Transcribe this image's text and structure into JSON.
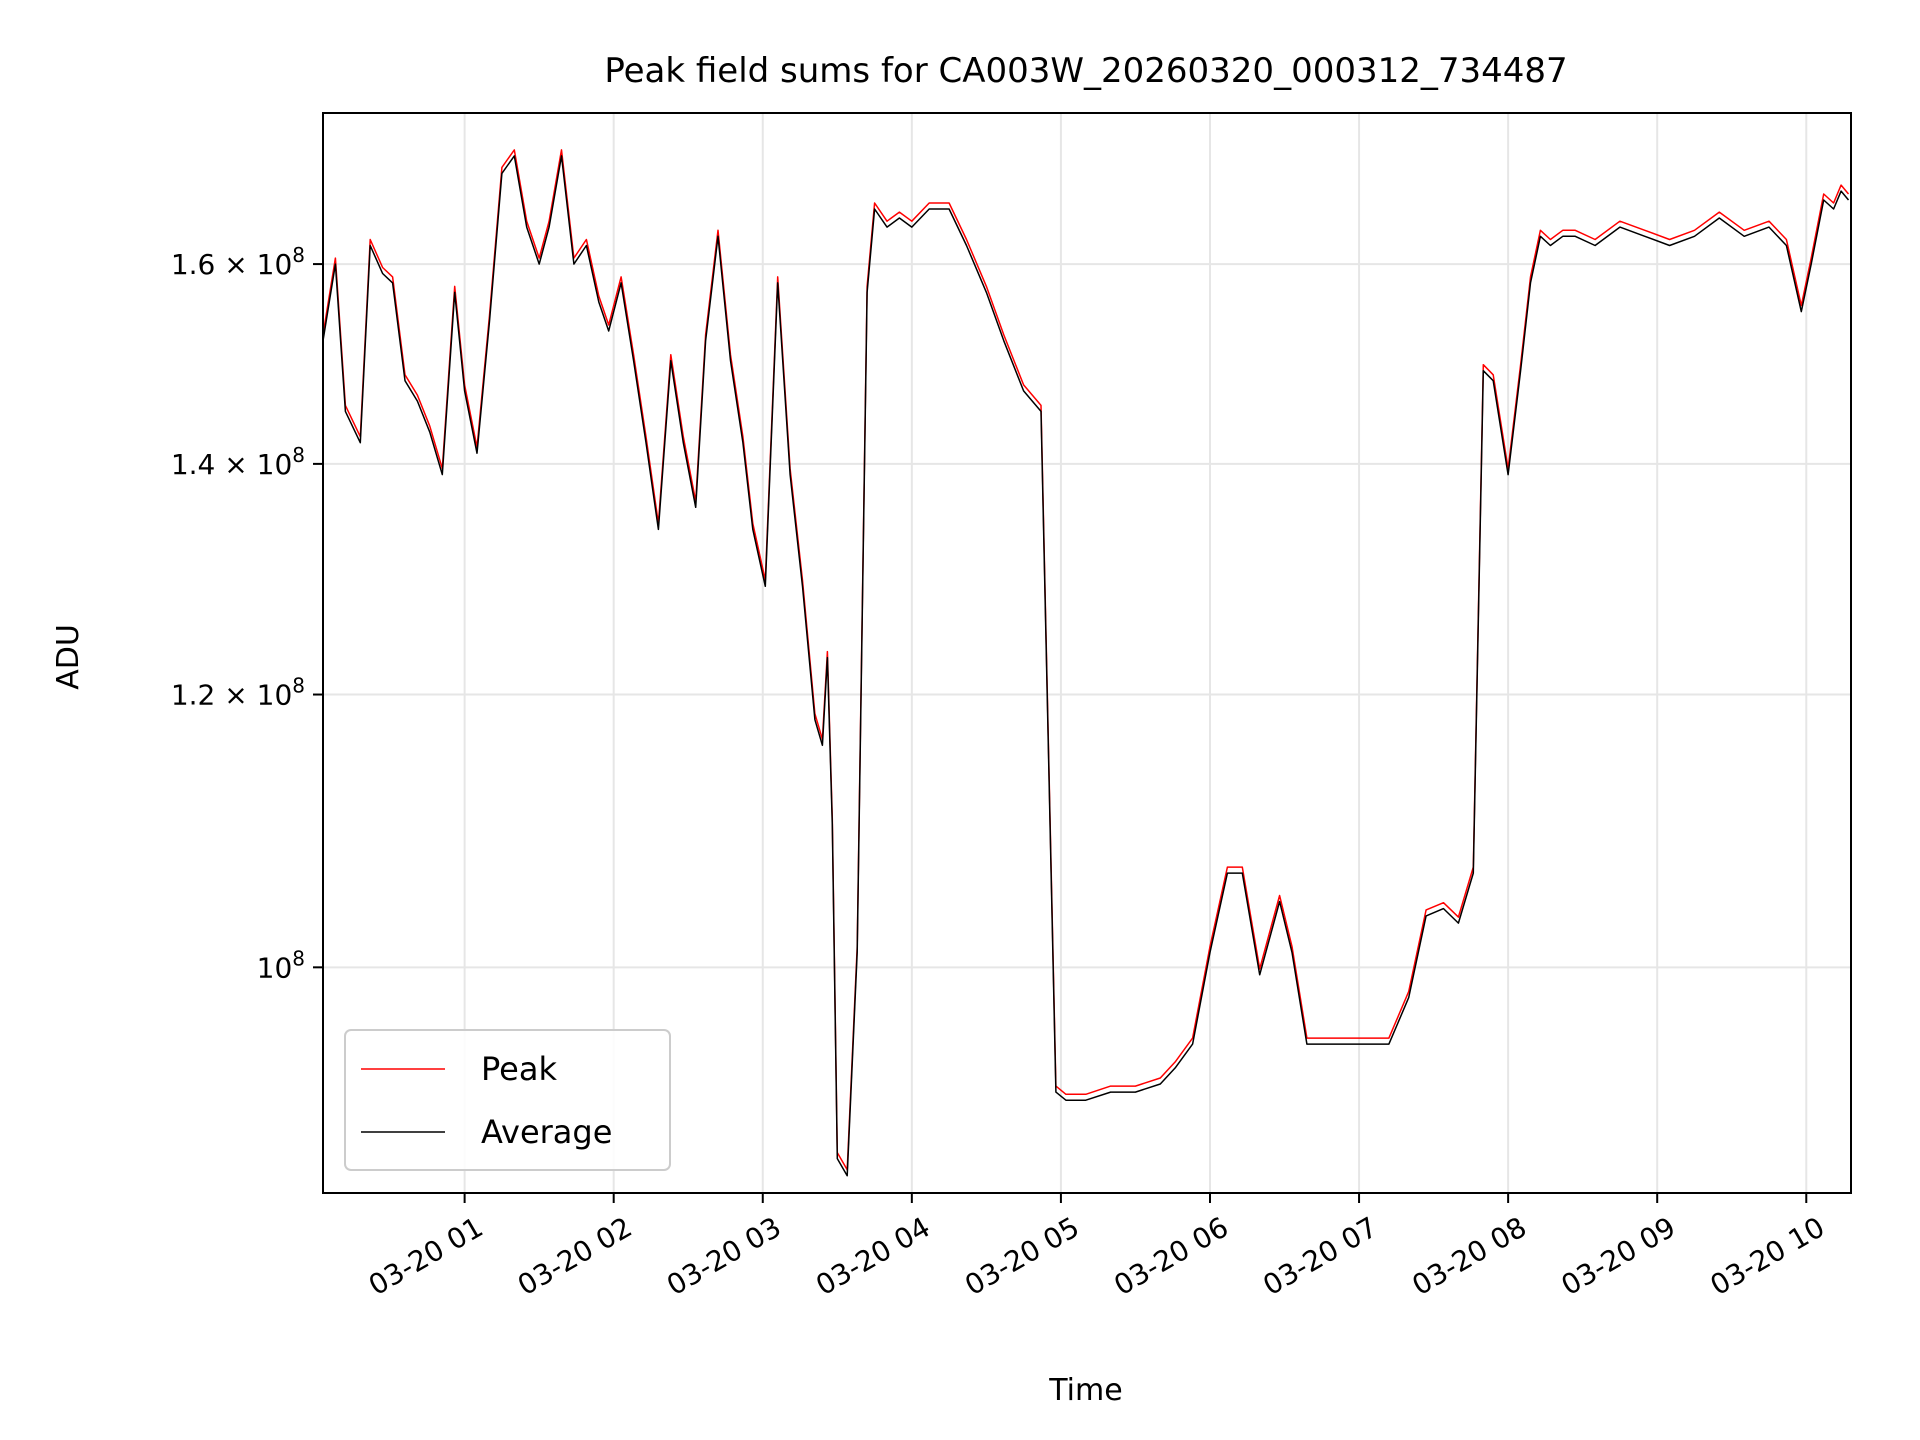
{
  "chart_data": {
    "type": "line",
    "title": "Peak field sums for CA003W_20260320_000312_734487",
    "xlabel": "Time",
    "ylabel": "ADU",
    "y_scale": "log",
    "grid": true,
    "legend_placement": "lower-left",
    "xlim": [
      "03-20 00:03",
      "03-20 10:18"
    ],
    "ylim": [
      86000000,
      177000000
    ],
    "x_ticks": [
      "03-20 01",
      "03-20 02",
      "03-20 03",
      "03-20 04",
      "03-20 05",
      "03-20 06",
      "03-20 07",
      "03-20 08",
      "03-20 09",
      "03-20 10"
    ],
    "y_ticks": [
      {
        "value": 100000000,
        "base": "10",
        "exp": "8",
        "mantissa": ""
      },
      {
        "value": 120000000,
        "base": "10",
        "exp": "8",
        "mantissa": "1.2"
      },
      {
        "value": 140000000,
        "base": "10",
        "exp": "8",
        "mantissa": "1.4"
      },
      {
        "value": 160000000,
        "base": "10",
        "exp": "8",
        "mantissa": "1.6"
      }
    ],
    "series": [
      {
        "name": "Peak",
        "color": "#ff0000",
        "offset_factor": 1.004
      },
      {
        "name": "Average",
        "color": "#000000",
        "offset_factor": 1.0,
        "x": [
          "03-20 00:03",
          "03-20 00:08",
          "03-20 00:12",
          "03-20 00:18",
          "03-20 00:22",
          "03-20 00:27",
          "03-20 00:31",
          "03-20 00:36",
          "03-20 00:41",
          "03-20 00:46",
          "03-20 00:51",
          "03-20 00:56",
          "03-20 01:00",
          "03-20 01:05",
          "03-20 01:10",
          "03-20 01:15",
          "03-20 01:20",
          "03-20 01:25",
          "03-20 01:30",
          "03-20 01:34",
          "03-20 01:39",
          "03-20 01:44",
          "03-20 01:49",
          "03-20 01:54",
          "03-20 01:58",
          "03-20 02:03",
          "03-20 02:08",
          "03-20 02:13",
          "03-20 02:18",
          "03-20 02:23",
          "03-20 02:28",
          "03-20 02:33",
          "03-20 02:37",
          "03-20 02:42",
          "03-20 02:47",
          "03-20 02:52",
          "03-20 02:56",
          "03-20 03:01",
          "03-20 03:06",
          "03-20 03:11",
          "03-20 03:16",
          "03-20 03:21",
          "03-20 03:24",
          "03-20 03:26",
          "03-20 03:28",
          "03-20 03:30",
          "03-20 03:34",
          "03-20 03:38",
          "03-20 03:42",
          "03-20 03:45",
          "03-20 03:50",
          "03-20 03:55",
          "03-20 04:00",
          "03-20 04:07",
          "03-20 04:15",
          "03-20 04:22",
          "03-20 04:30",
          "03-20 04:37",
          "03-20 04:45",
          "03-20 04:52",
          "03-20 04:58",
          "03-20 05:02",
          "03-20 05:05",
          "03-20 05:10",
          "03-20 05:20",
          "03-20 05:30",
          "03-20 05:40",
          "03-20 05:46",
          "03-20 05:53",
          "03-20 06:00",
          "03-20 06:07",
          "03-20 06:13",
          "03-20 06:20",
          "03-20 06:28",
          "03-20 06:33",
          "03-20 06:39",
          "03-20 06:47",
          "03-20 06:53",
          "03-20 06:58",
          "03-20 07:05",
          "03-20 07:12",
          "03-20 07:20",
          "03-20 07:27",
          "03-20 07:34",
          "03-20 07:40",
          "03-20 07:46",
          "03-20 07:50",
          "03-20 07:54",
          "03-20 08:00",
          "03-20 08:05",
          "03-20 08:09",
          "03-20 08:13",
          "03-20 08:17",
          "03-20 08:22",
          "03-20 08:27",
          "03-20 08:35",
          "03-20 08:45",
          "03-20 08:55",
          "03-20 09:05",
          "03-20 09:15",
          "03-20 09:25",
          "03-20 09:35",
          "03-20 09:45",
          "03-20 09:52",
          "03-20 09:58",
          "03-20 10:02",
          "03-20 10:07",
          "03-20 10:11",
          "03-20 10:14",
          "03-20 10:17"
        ],
        "values": [
          152000000,
          160000000,
          145000000,
          142000000,
          162000000,
          159000000,
          158000000,
          148000000,
          146000000,
          143000000,
          139000000,
          157000000,
          147000000,
          141000000,
          154000000,
          170000000,
          172000000,
          164000000,
          160000000,
          164000000,
          172000000,
          160000000,
          162000000,
          156000000,
          153000000,
          158000000,
          150000000,
          142000000,
          134000000,
          150000000,
          142000000,
          136000000,
          152000000,
          163000000,
          150000000,
          142000000,
          134000000,
          129000000,
          158000000,
          139000000,
          129000000,
          118000000,
          116000000,
          123000000,
          110000000,
          88000000,
          87000000,
          101000000,
          157000000,
          166000000,
          164000000,
          165000000,
          164000000,
          166000000,
          166000000,
          162000000,
          157000000,
          152000000,
          147000000,
          145000000,
          92000000,
          91500000,
          91500000,
          91500000,
          92000000,
          92000000,
          92500000,
          93500000,
          95000000,
          101000000,
          106500000,
          106500000,
          99500000,
          104500000,
          101000000,
          95000000,
          95000000,
          95000000,
          95000000,
          95000000,
          95000000,
          98000000,
          103500000,
          104000000,
          103000000,
          106500000,
          149000000,
          148000000,
          139000000,
          149000000,
          158000000,
          163000000,
          162000000,
          163000000,
          163000000,
          162000000,
          164000000,
          163000000,
          162000000,
          163000000,
          165000000,
          163000000,
          164000000,
          162000000,
          155000000,
          160000000,
          167000000,
          166000000,
          168000000,
          167000000
        ]
      }
    ]
  }
}
